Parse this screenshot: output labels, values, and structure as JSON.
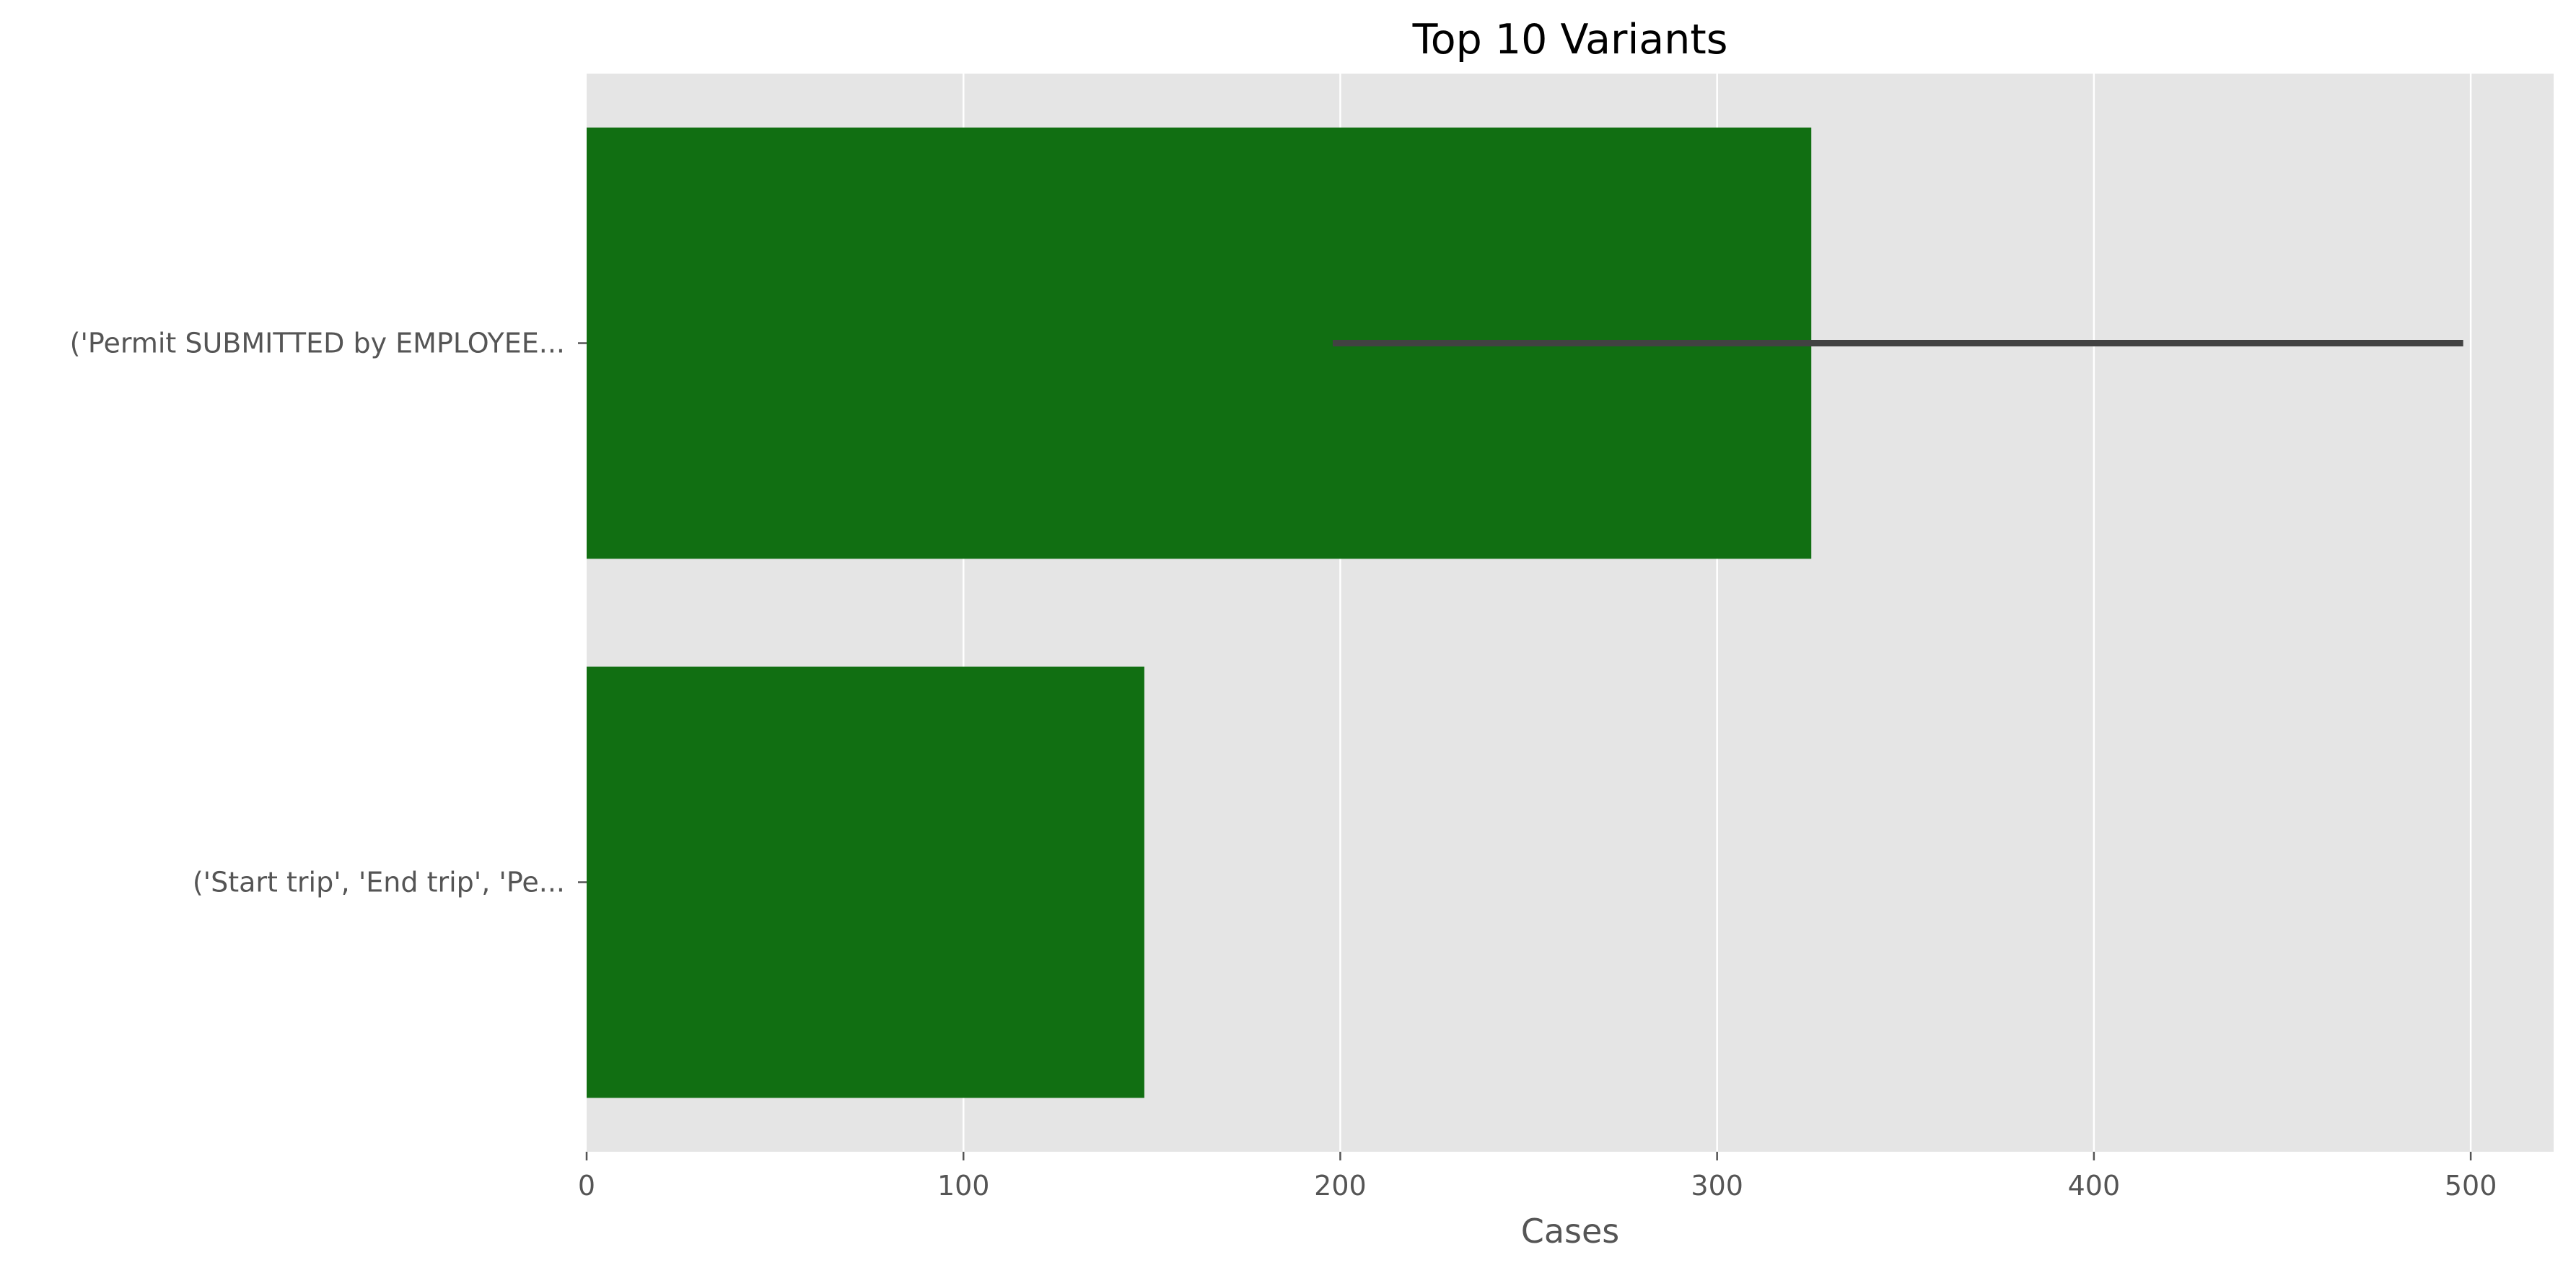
{
  "colors": {
    "plot_background": "#e5e5e5",
    "grid": "#ffffff",
    "bar": "#116f12",
    "error_bar": "#424242",
    "tick": "#555555"
  },
  "chart_data": {
    "type": "bar",
    "orientation": "horizontal",
    "title": "Top 10 Variants",
    "xlabel": "Cases",
    "ylabel": "",
    "xlim": [
      0,
      522
    ],
    "xticks": [
      0,
      100,
      200,
      300,
      400,
      500
    ],
    "grid": true,
    "categories": [
      "('Permit SUBMITTED by EMPLOYEE...",
      "('Start trip', 'End trip', 'Pe..."
    ],
    "values": [
      325,
      148
    ],
    "error_bars": [
      {
        "category": "('Permit SUBMITTED by EMPLOYEE...",
        "low": 198,
        "high": 498
      },
      null
    ]
  }
}
